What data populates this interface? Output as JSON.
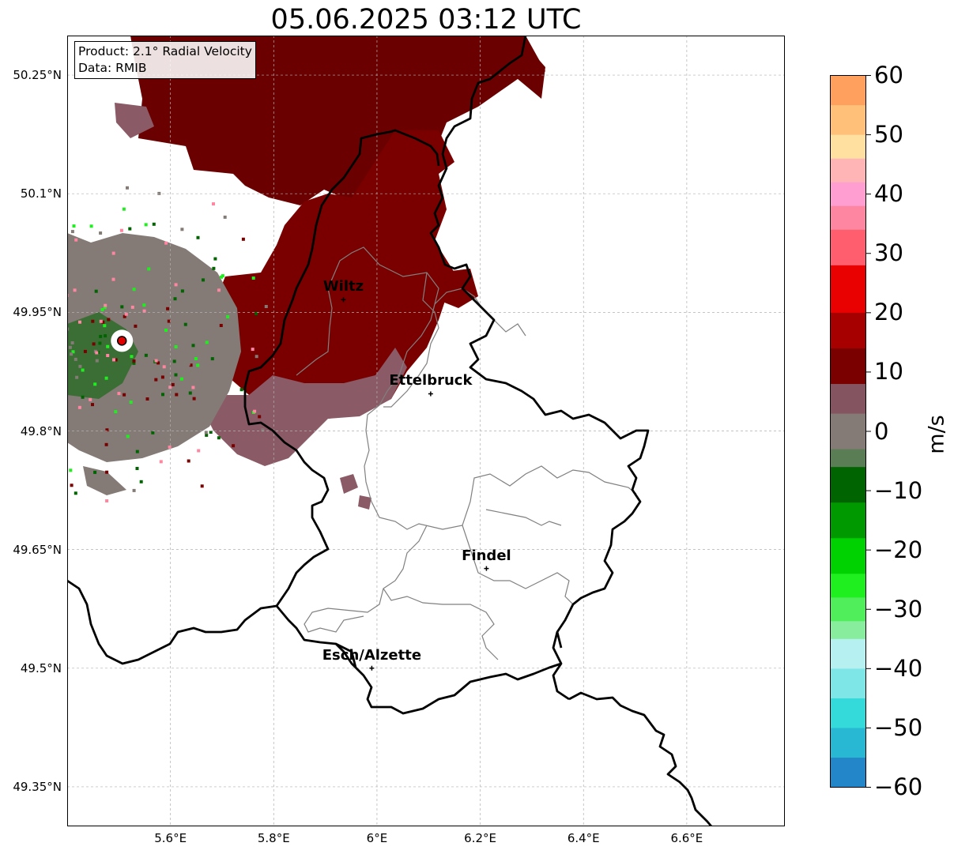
{
  "title": "05.06.2025 03:12 UTC",
  "info": {
    "product": "Product: 2.1° Radial Velocity",
    "source": "Data: RMIB"
  },
  "axes": {
    "y_ticks": [
      {
        "value": 50.25,
        "label": "50.25°N"
      },
      {
        "value": 50.1,
        "label": "50.1°N"
      },
      {
        "value": 49.95,
        "label": "49.95°N"
      },
      {
        "value": 49.8,
        "label": "49.8°N"
      },
      {
        "value": 49.65,
        "label": "49.65°N"
      },
      {
        "value": 49.5,
        "label": "49.5°N"
      },
      {
        "value": 49.35,
        "label": "49.35°N"
      }
    ],
    "x_ticks": [
      {
        "value": 5.6,
        "label": "5.6°E"
      },
      {
        "value": 5.8,
        "label": "5.8°E"
      },
      {
        "value": 6.0,
        "label": "6°E"
      },
      {
        "value": 6.2,
        "label": "6.2°E"
      },
      {
        "value": 6.4,
        "label": "6.4°E"
      },
      {
        "value": 6.6,
        "label": "6.6°E"
      }
    ],
    "lon_range": [
      5.4,
      6.79
    ],
    "lat_range": [
      49.3,
      50.3
    ],
    "grid": true
  },
  "cities": [
    {
      "name": "Wiltz",
      "lon": 5.935,
      "lat": 49.966
    },
    {
      "name": "Ettelbruck",
      "lon": 6.104,
      "lat": 49.847
    },
    {
      "name": "Findel",
      "lon": 6.212,
      "lat": 49.626
    },
    {
      "name": "Esch/Alzette",
      "lon": 5.99,
      "lat": 49.5
    }
  ],
  "radar_site": {
    "lon": 5.506,
    "lat": 49.914,
    "color": "#e00000"
  },
  "colorbar": {
    "label": "m/s",
    "min": -60,
    "max": 60,
    "ticks": [
      {
        "value": 60,
        "label": "60"
      },
      {
        "value": 50,
        "label": "50"
      },
      {
        "value": 40,
        "label": "40"
      },
      {
        "value": 30,
        "label": "30"
      },
      {
        "value": 20,
        "label": "20"
      },
      {
        "value": 10,
        "label": "10"
      },
      {
        "value": 0,
        "label": "0"
      },
      {
        "value": -10,
        "label": "−10"
      },
      {
        "value": -20,
        "label": "−20"
      },
      {
        "value": -30,
        "label": "−30"
      },
      {
        "value": -40,
        "label": "−40"
      },
      {
        "value": -50,
        "label": "−50"
      },
      {
        "value": -60,
        "label": "−60"
      }
    ],
    "stops": [
      {
        "from": -60,
        "to": -55,
        "color": "#2386c8"
      },
      {
        "from": -55,
        "to": -50,
        "color": "#28b8d4"
      },
      {
        "from": -50,
        "to": -45,
        "color": "#34dada"
      },
      {
        "from": -45,
        "to": -40,
        "color": "#7ee6e6"
      },
      {
        "from": -40,
        "to": -35,
        "color": "#b6f0f0"
      },
      {
        "from": -35,
        "to": -32,
        "color": "#88ee9e"
      },
      {
        "from": -32,
        "to": -28,
        "color": "#4fee5a"
      },
      {
        "from": -28,
        "to": -24,
        "color": "#1fef1f"
      },
      {
        "from": -24,
        "to": -18,
        "color": "#00d100"
      },
      {
        "from": -18,
        "to": -12,
        "color": "#009a00"
      },
      {
        "from": -12,
        "to": -6,
        "color": "#006400"
      },
      {
        "from": -6,
        "to": -3,
        "color": "#5b7d55"
      },
      {
        "from": -3,
        "to": 3,
        "color": "#847a76"
      },
      {
        "from": 3,
        "to": 8,
        "color": "#845560"
      },
      {
        "from": 8,
        "to": 14,
        "color": "#7a0000"
      },
      {
        "from": 14,
        "to": 20,
        "color": "#a60000"
      },
      {
        "from": 20,
        "to": 28,
        "color": "#e90000"
      },
      {
        "from": 28,
        "to": 34,
        "color": "#ff5e6e"
      },
      {
        "from": 34,
        "to": 38,
        "color": "#ff86a0"
      },
      {
        "from": 38,
        "to": 42,
        "color": "#ff9ed0"
      },
      {
        "from": 42,
        "to": 46,
        "color": "#ffb5b5"
      },
      {
        "from": 46,
        "to": 50,
        "color": "#ffe0a0"
      },
      {
        "from": 50,
        "to": 55,
        "color": "#ffc07a"
      },
      {
        "from": 55,
        "to": 60,
        "color": "#ffa05e"
      }
    ]
  },
  "colors": {
    "border": "#000000",
    "district": "#808080",
    "grid": "#b0b0b0",
    "echo_inbound": "#7a0000",
    "echo_inbound_dark": "#6b0000",
    "echo_zero": "#847a76",
    "echo_zero_pink": "#8a5b66",
    "echo_outbound": "#006400"
  }
}
